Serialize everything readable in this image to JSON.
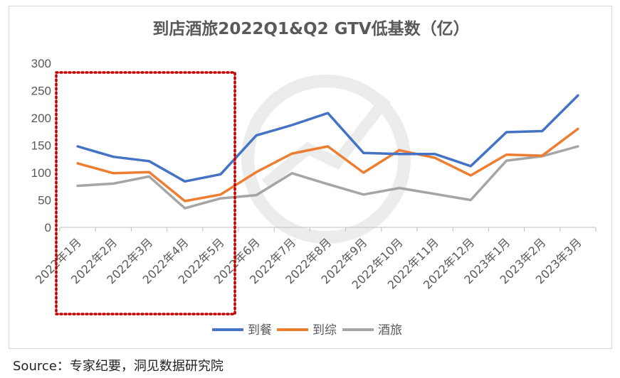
{
  "source": "Source：专家纪要，洞见数据研究院",
  "chart_data": {
    "type": "line",
    "title": "到店酒旅2022Q1&Q2 GTV低基数（亿）",
    "xlabel": "",
    "ylabel": "",
    "categories": [
      "2022年1月",
      "2022年2月",
      "2022年3月",
      "2022年4月",
      "2022年5月",
      "2022年6月",
      "2022年7月",
      "2022年8月",
      "2022年9月",
      "2022年10月",
      "2022年11月",
      "2022年12月",
      "2023年1月",
      "2023年2月",
      "2023年3月"
    ],
    "ylim": [
      0,
      300
    ],
    "yticks": [
      0,
      50,
      100,
      150,
      200,
      250,
      300
    ],
    "grid": false,
    "legend": "bottom",
    "series": [
      {
        "name": "到餐",
        "color": "#4472c4",
        "values": [
          148,
          129,
          121,
          84,
          97,
          168,
          187,
          209,
          136,
          134,
          134,
          112,
          174,
          176,
          241
        ]
      },
      {
        "name": "到综",
        "color": "#ed7d31",
        "values": [
          117,
          99,
          101,
          48,
          60,
          101,
          135,
          148,
          100,
          141,
          127,
          95,
          133,
          131,
          180
        ]
      },
      {
        "name": "酒旅",
        "color": "#a5a5a5",
        "values": [
          76,
          80,
          93,
          35,
          53,
          59,
          99,
          79,
          60,
          72,
          61,
          50,
          122,
          130,
          148
        ]
      }
    ],
    "annotation": {
      "type": "dotted-rectangle",
      "color": "#c00000",
      "covers_categories": [
        "2022年1月",
        "2022年5月"
      ]
    }
  }
}
